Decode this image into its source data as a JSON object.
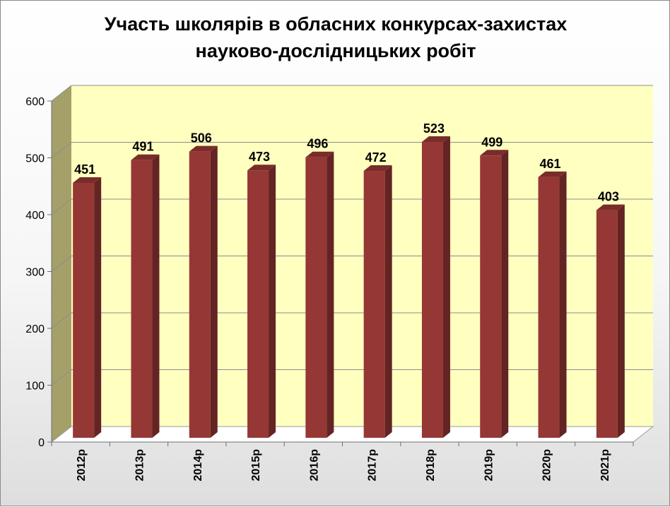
{
  "chart_data": {
    "type": "bar",
    "title_lines": [
      "Участь школярів в обласних конкурсах-захистах",
      "науково-дослідницьких робіт"
    ],
    "categories": [
      "2012р",
      "2013р",
      "2014р",
      "2015р",
      "2016р",
      "2017р",
      "2018р",
      "2019р",
      "2020р",
      "2021р"
    ],
    "values": [
      451,
      491,
      506,
      473,
      496,
      472,
      523,
      499,
      461,
      403
    ],
    "data_labels": [
      "451",
      "491",
      "506",
      "473",
      "496",
      "472",
      "523",
      "499",
      "461",
      "403"
    ],
    "ylim": [
      0,
      600
    ],
    "yticks": [
      "0",
      "100",
      "200",
      "300",
      "400",
      "500",
      "600"
    ],
    "grid": true,
    "legend": "none",
    "style": "3d-column"
  },
  "colors": {
    "bar_front": "#953735",
    "bar_side": "#632423",
    "bar_top": "#7a2c2b",
    "back_wall": "#ffffc0",
    "side_wall": "#a5a06a",
    "floor": "#ffffff",
    "gridline": "#8c8c8c"
  }
}
